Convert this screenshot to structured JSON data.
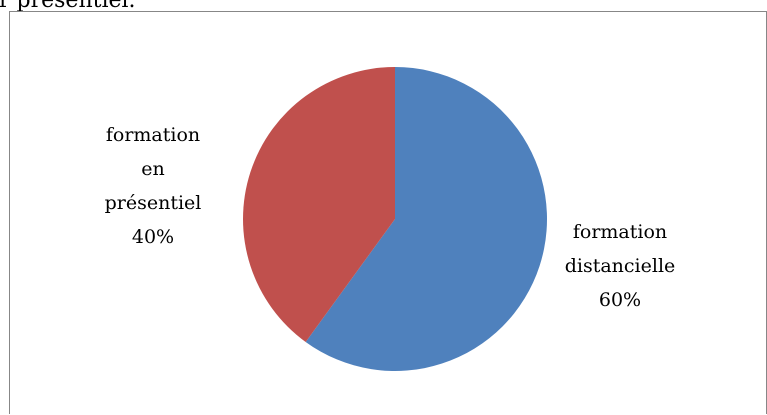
{
  "page": {
    "header_fragment": "r présentiel."
  },
  "chart_data": {
    "type": "pie",
    "title": "",
    "slices": [
      {
        "label_lines": [
          "formation",
          "distancielle",
          "60%"
        ],
        "category": "formation distancielle",
        "value": 60,
        "color": "#4F81BD"
      },
      {
        "label_lines": [
          "formation",
          "en",
          "présentiel",
          "40%"
        ],
        "category": "formation en présentiel",
        "value": 40,
        "color": "#C0504D"
      }
    ],
    "start_angle_deg": 0,
    "direction": "clockwise",
    "legend": "none",
    "data_labels": "outside, category name and percentage"
  }
}
